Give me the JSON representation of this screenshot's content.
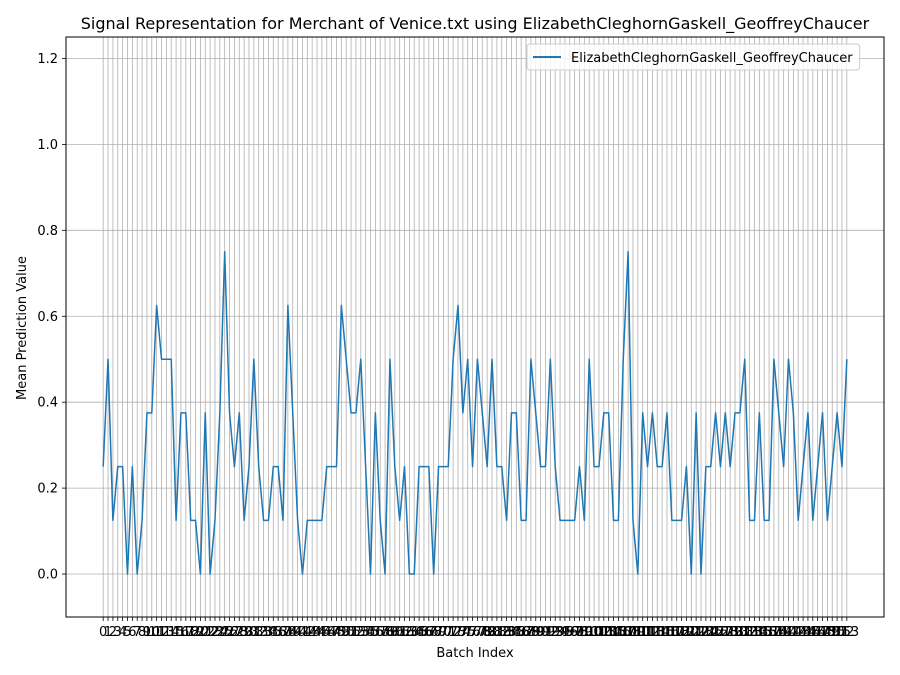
{
  "chart_data": {
    "type": "line",
    "title": "Signal Representation for Merchant of Venice.txt using ElizabethCleghornGaskell_GeoffreyChaucer",
    "xlabel": "Batch Index",
    "ylabel": "Mean Prediction Value",
    "ylim": [
      -0.1,
      1.25
    ],
    "yticks": [
      0.0,
      0.2,
      0.4,
      0.6,
      0.8,
      1.0,
      1.2
    ],
    "ytick_labels": [
      "0.0",
      "0.2",
      "0.4",
      "0.6",
      "0.8",
      "1.0",
      "1.2"
    ],
    "grid": true,
    "legend": "top-right",
    "series_color": "#1f77b4",
    "series": [
      {
        "name": "ElizabethCleghornGaskell_GeoffreyChaucer",
        "x": [
          0,
          1,
          2,
          3,
          4,
          5,
          6,
          7,
          8,
          9,
          10,
          11,
          12,
          13,
          14,
          15,
          16,
          17,
          18,
          19,
          20,
          21,
          22,
          23,
          24,
          25,
          26,
          27,
          28,
          29,
          30,
          31,
          32,
          33,
          34,
          35,
          36,
          37,
          38,
          39,
          40,
          41,
          42,
          43,
          44,
          45,
          46,
          47,
          48,
          49,
          50,
          51,
          52,
          53,
          54,
          55,
          56,
          57,
          58,
          59,
          60,
          61,
          62,
          63,
          64,
          65,
          66,
          67,
          68,
          69,
          70,
          71,
          72,
          73,
          74,
          75,
          76,
          77,
          78,
          79,
          80,
          81,
          82,
          83,
          84,
          85,
          86,
          87,
          88,
          89,
          90,
          91,
          92,
          93,
          94,
          95,
          96,
          97,
          98,
          99,
          100,
          101,
          102,
          103,
          104,
          105,
          106,
          107,
          108,
          109,
          110,
          111,
          112,
          113,
          114,
          115,
          116,
          117,
          118,
          119,
          120,
          121,
          122,
          123,
          124,
          125,
          126,
          127,
          128,
          129,
          130,
          131,
          132,
          133,
          134,
          135,
          136,
          137,
          138,
          139,
          140,
          141,
          142,
          143,
          144,
          145,
          146,
          147,
          148,
          149,
          150,
          151,
          152,
          153
        ],
        "values": [
          0.25,
          0.5,
          0.125,
          0.25,
          0.25,
          0.0,
          0.25,
          0.0,
          0.125,
          0.375,
          0.375,
          0.625,
          0.5,
          0.5,
          0.5,
          0.125,
          0.375,
          0.375,
          0.125,
          0.125,
          0.0,
          0.375,
          0.0,
          0.125,
          0.375,
          0.75,
          0.375,
          0.25,
          0.375,
          0.125,
          0.25,
          0.5,
          0.25,
          0.125,
          0.125,
          0.25,
          0.25,
          0.125,
          0.625,
          0.375,
          0.125,
          0.0,
          0.125,
          0.125,
          0.125,
          0.125,
          0.25,
          0.25,
          0.25,
          0.625,
          0.5,
          0.375,
          0.375,
          0.5,
          0.25,
          0.0,
          0.375,
          0.125,
          0.0,
          0.5,
          0.25,
          0.125,
          0.25,
          0.0,
          0.0,
          0.25,
          0.25,
          0.25,
          0.0,
          0.25,
          0.25,
          0.25,
          0.5,
          0.625,
          0.375,
          0.5,
          0.25,
          0.5,
          0.375,
          0.25,
          0.5,
          0.25,
          0.25,
          0.125,
          0.375,
          0.375,
          0.125,
          0.125,
          0.5,
          0.375,
          0.25,
          0.25,
          0.5,
          0.25,
          0.125,
          0.125,
          0.125,
          0.125,
          0.25,
          0.125,
          0.5,
          0.25,
          0.25,
          0.375,
          0.375,
          0.125,
          0.125,
          0.5,
          0.75,
          0.125,
          0.0,
          0.375,
          0.25,
          0.375,
          0.25,
          0.25,
          0.375,
          0.125,
          0.125,
          0.125,
          0.25,
          0.0,
          0.375,
          0.0,
          0.25,
          0.25,
          0.375,
          0.25,
          0.375,
          0.25,
          0.375,
          0.375,
          0.5,
          0.125,
          0.125,
          0.375,
          0.125,
          0.125,
          0.5,
          0.375,
          0.25,
          0.5,
          0.375,
          0.125,
          0.25,
          0.375,
          0.125,
          0.25,
          0.375,
          0.125,
          0.25,
          0.375,
          0.25,
          0.5
        ]
      }
    ]
  }
}
